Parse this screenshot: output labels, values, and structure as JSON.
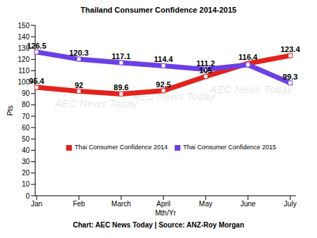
{
  "chart_data": {
    "type": "line",
    "title": "Thailand Consumer Confidence 2014-2015",
    "subtitle": "Chart: AEC News Today | Source: ANZ-Roy Morgan",
    "annotations": [
      "AEC News Today"
    ],
    "x_label": "Mth/Yr",
    "y_label": "Pts",
    "categories": [
      "Jan",
      "Feb",
      "March",
      "April",
      "May",
      "June",
      "July"
    ],
    "series": [
      {
        "name": "Thai Consumer Confidence 2014",
        "color": "#e3221c",
        "marker": "square",
        "values": [
          95.4,
          92,
          89.6,
          92.5,
          105,
          116.4,
          123.4
        ],
        "value_labels": [
          "95.4",
          "92",
          "89.6",
          "92.5",
          "105",
          "116.4",
          "123.4"
        ]
      },
      {
        "name": "Thai Consumer Confidence 2015",
        "color": "#6b3fe6",
        "marker": "square",
        "values": [
          126.5,
          120.3,
          117.1,
          114.4,
          111.2,
          115.3,
          99.3
        ],
        "value_labels": [
          "126.5",
          "120.3",
          "117.1",
          "114.4",
          "111.2",
          null,
          "99.3"
        ]
      }
    ],
    "ylim": [
      0,
      150
    ],
    "yticks": [
      0,
      10,
      20,
      30,
      40,
      50,
      60,
      70,
      80,
      90,
      100,
      110,
      120,
      130,
      140,
      150
    ],
    "grid": false,
    "legend": "bottom",
    "data_labels": true
  }
}
